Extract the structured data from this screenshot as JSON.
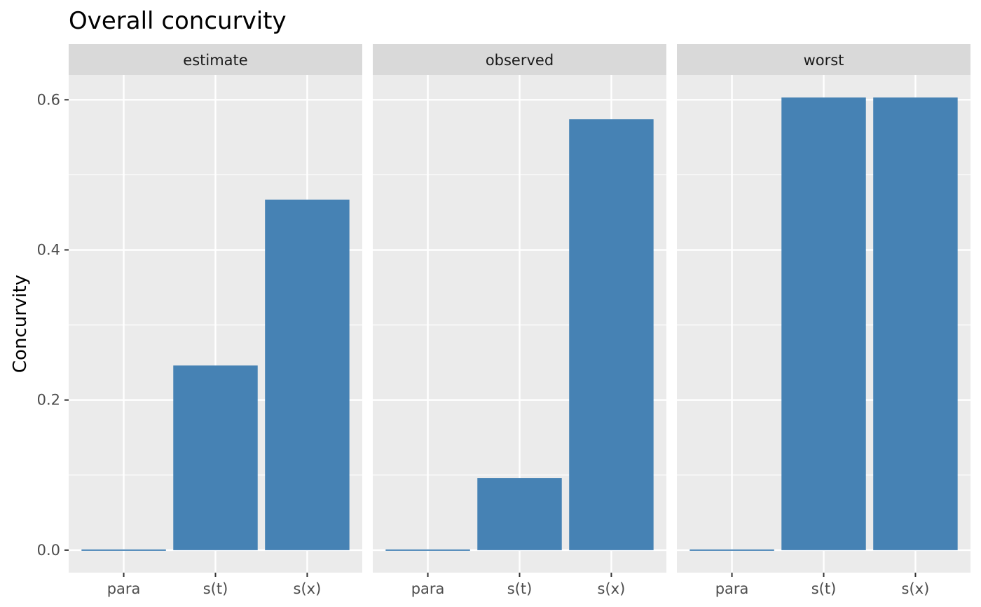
{
  "chart_data": {
    "type": "bar",
    "title": "Overall concurvity",
    "ylabel": "Concurvity",
    "xlabel": "",
    "categories": [
      "para",
      "s(t)",
      "s(x)"
    ],
    "panels": [
      {
        "name": "estimate",
        "values": [
          0.0,
          0.246,
          0.467
        ]
      },
      {
        "name": "observed",
        "values": [
          0.0,
          0.096,
          0.574
        ]
      },
      {
        "name": "worst",
        "values": [
          0.0,
          0.603,
          0.603
        ]
      }
    ],
    "ylim": [
      -0.03,
      0.633
    ],
    "yticks": [
      0.0,
      0.2,
      0.4,
      0.6
    ],
    "ytick_labels": [
      "0.0",
      "0.2",
      "0.4",
      "0.6"
    ],
    "grid": true,
    "bar_color": "#4682B4",
    "panel_background": "#EBEBEB",
    "strip_background": "#D9D9D9"
  }
}
